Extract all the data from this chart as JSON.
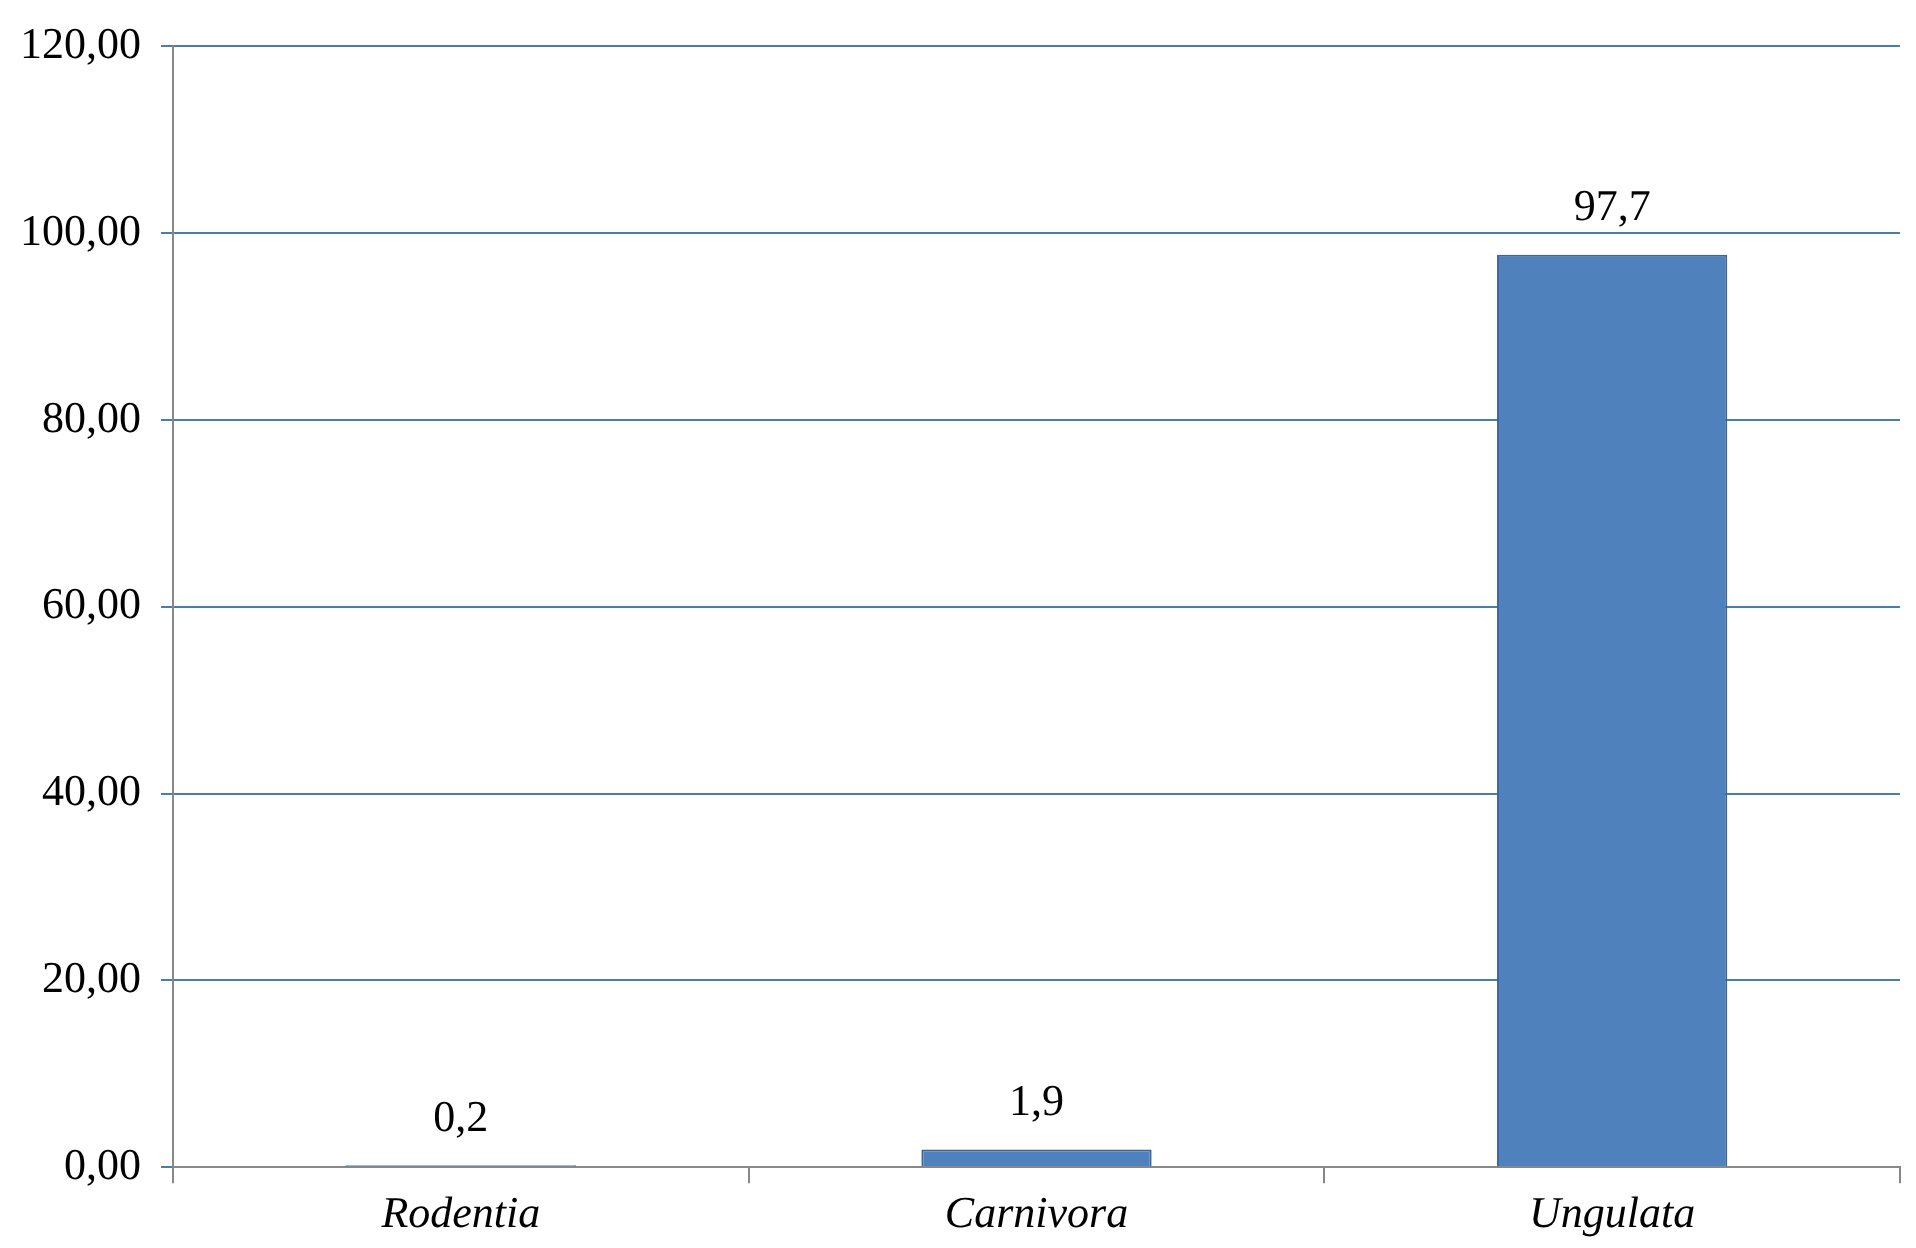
{
  "chart_data": {
    "type": "bar",
    "categories": [
      "Rodentia",
      "Carnivora",
      "Ungulata"
    ],
    "values": [
      0.2,
      1.9,
      97.7
    ],
    "color": "#4f81bd",
    "value_labels": [
      "0,2",
      "1,9",
      "97,7"
    ],
    "ylim": [
      0,
      120
    ],
    "yticks": [
      {
        "value": 0,
        "label": "0,00"
      },
      {
        "value": 20,
        "label": "20,00"
      },
      {
        "value": 40,
        "label": "40,00"
      },
      {
        "value": 60,
        "label": "60,00"
      },
      {
        "value": 80,
        "label": "80,00"
      },
      {
        "value": 100,
        "label": "100,00"
      },
      {
        "value": 120,
        "label": "120,00"
      }
    ],
    "grid": "y"
  }
}
